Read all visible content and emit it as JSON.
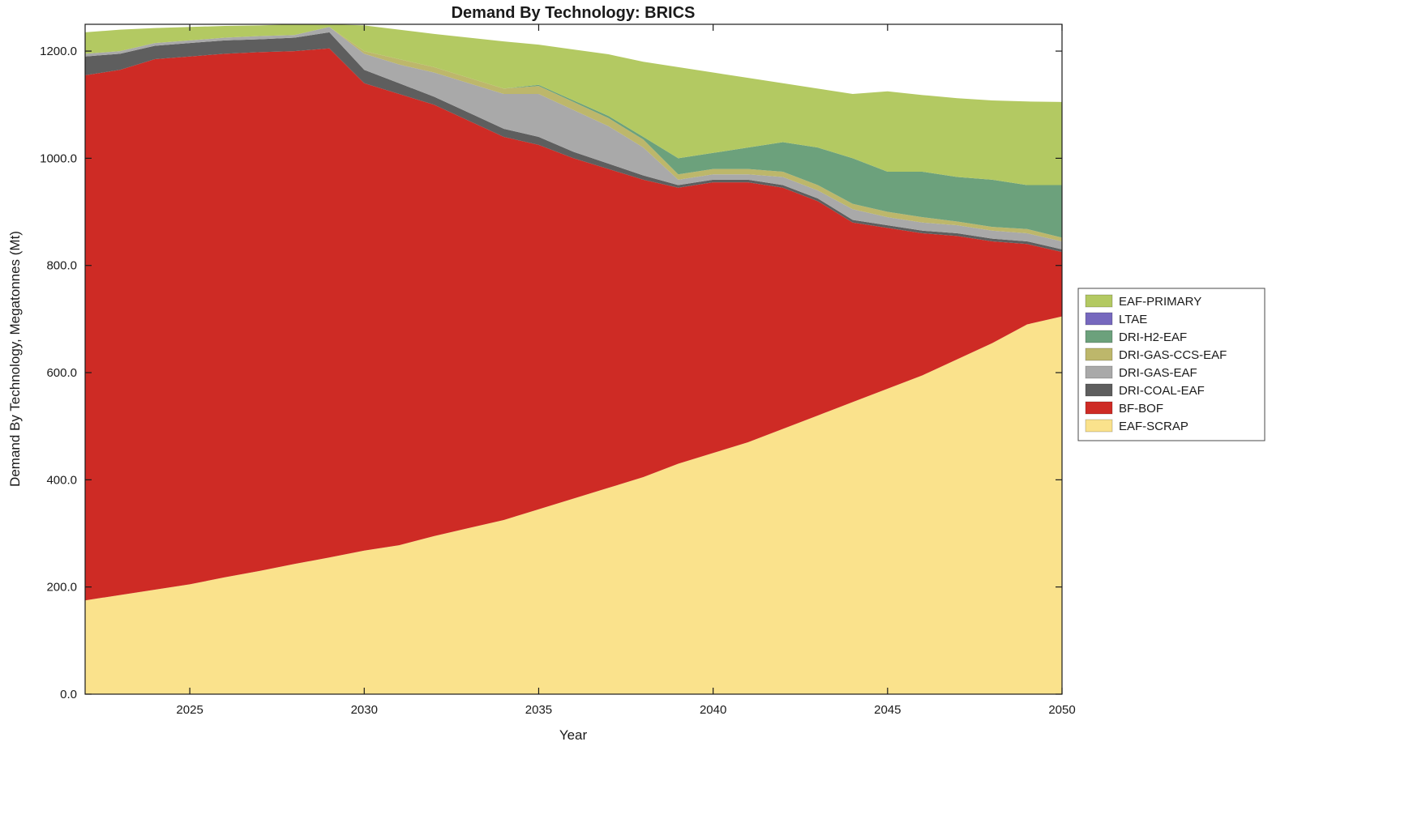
{
  "chart_data": {
    "type": "area",
    "stacked": true,
    "title": "Demand By Technology: BRICS",
    "xlabel": "Year",
    "ylabel": "Demand By Technology, Megatonnes (Mt)",
    "xlim": [
      2022,
      2050
    ],
    "ylim": [
      0,
      1250
    ],
    "grid": false,
    "xticks": [
      {
        "value": 2025,
        "label": "2025"
      },
      {
        "value": 2030,
        "label": "2030"
      },
      {
        "value": 2035,
        "label": "2035"
      },
      {
        "value": 2040,
        "label": "2040"
      },
      {
        "value": 2045,
        "label": "2045"
      },
      {
        "value": 2050,
        "label": "2050"
      }
    ],
    "yticks": [
      {
        "value": 0,
        "label": "0.0"
      },
      {
        "value": 200,
        "label": "200.0"
      },
      {
        "value": 400,
        "label": "400.0"
      },
      {
        "value": 600,
        "label": "600.0"
      },
      {
        "value": 800,
        "label": "800.0"
      },
      {
        "value": 1000,
        "label": "1000.0"
      },
      {
        "value": 1200,
        "label": "1200.0"
      }
    ],
    "x": [
      2022,
      2023,
      2024,
      2025,
      2026,
      2027,
      2028,
      2029,
      2030,
      2031,
      2032,
      2033,
      2034,
      2035,
      2036,
      2037,
      2038,
      2039,
      2040,
      2041,
      2042,
      2043,
      2044,
      2045,
      2046,
      2047,
      2048,
      2049,
      2050
    ],
    "series": [
      {
        "name": "EAF-SCRAP",
        "color": "#FAE28C",
        "values": [
          175,
          185,
          195,
          205,
          218,
          230,
          243,
          255,
          268,
          278,
          295,
          310,
          325,
          345,
          365,
          385,
          405,
          430,
          450,
          470,
          495,
          520,
          545,
          570,
          595,
          625,
          655,
          690,
          705
        ]
      },
      {
        "name": "BF-BOF",
        "color": "#CE2B25",
        "values": [
          980,
          980,
          990,
          985,
          977,
          968,
          957,
          950,
          872,
          842,
          805,
          760,
          715,
          680,
          635,
          595,
          555,
          515,
          505,
          485,
          450,
          400,
          335,
          300,
          265,
          230,
          190,
          150,
          120
        ]
      },
      {
        "name": "DRI-COAL-EAF",
        "color": "#5E5E5E",
        "values": [
          35,
          30,
          25,
          25,
          25,
          24,
          25,
          30,
          25,
          20,
          15,
          15,
          15,
          15,
          12,
          10,
          8,
          5,
          5,
          5,
          5,
          5,
          5,
          5,
          5,
          5,
          5,
          5,
          5
        ]
      },
      {
        "name": "DRI-GAS-EAF",
        "color": "#A9A9A9",
        "values": [
          5,
          5,
          5,
          5,
          5,
          6,
          5,
          10,
          30,
          35,
          45,
          55,
          65,
          80,
          78,
          70,
          52,
          10,
          10,
          10,
          15,
          15,
          20,
          15,
          15,
          15,
          15,
          15,
          15
        ]
      },
      {
        "name": "DRI-GAS-CCS-EAF",
        "color": "#BDB76B",
        "values": [
          0,
          0,
          0,
          0,
          0,
          0,
          0,
          0,
          5,
          10,
          10,
          10,
          10,
          15,
          15,
          15,
          15,
          10,
          10,
          10,
          10,
          10,
          10,
          10,
          10,
          7,
          7,
          8,
          7
        ]
      },
      {
        "name": "DRI-H2-EAF",
        "color": "#6CA17C",
        "values": [
          0,
          0,
          0,
          0,
          0,
          0,
          0,
          0,
          0,
          0,
          0,
          0,
          0,
          2,
          3,
          4,
          5,
          30,
          30,
          40,
          55,
          70,
          85,
          75,
          85,
          83,
          88,
          82,
          98
        ]
      },
      {
        "name": "LTAE",
        "color": "#7668BE",
        "values": [
          0,
          0,
          0,
          0,
          0,
          0,
          0,
          0,
          0,
          0,
          0,
          0,
          0,
          0,
          0,
          0,
          0,
          0,
          0,
          0,
          0,
          0,
          0,
          0,
          0,
          0,
          0,
          0,
          0
        ]
      },
      {
        "name": "EAF-PRIMARY",
        "color": "#B3C962",
        "values": [
          40,
          40,
          28,
          25,
          22,
          20,
          20,
          5,
          48,
          55,
          62,
          75,
          88,
          75,
          95,
          115,
          140,
          170,
          150,
          130,
          110,
          110,
          120,
          150,
          143,
          147,
          148,
          156,
          155
        ]
      }
    ],
    "legend": {
      "position": "right-outside",
      "entries": [
        {
          "label": "EAF-PRIMARY",
          "color": "#B3C962"
        },
        {
          "label": "LTAE",
          "color": "#7668BE"
        },
        {
          "label": "DRI-H2-EAF",
          "color": "#6CA17C"
        },
        {
          "label": "DRI-GAS-CCS-EAF",
          "color": "#BDB76B"
        },
        {
          "label": "DRI-GAS-EAF",
          "color": "#A9A9A9"
        },
        {
          "label": "DRI-COAL-EAF",
          "color": "#5E5E5E"
        },
        {
          "label": "BF-BOF",
          "color": "#CE2B25"
        },
        {
          "label": "EAF-SCRAP",
          "color": "#FAE28C"
        }
      ]
    },
    "axis_color": "#1a1a1a"
  }
}
